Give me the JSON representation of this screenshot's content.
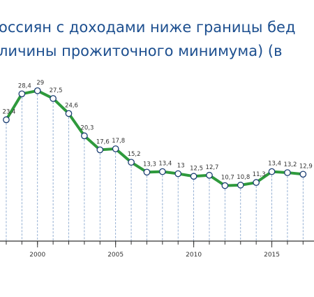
{
  "chart_data": {
    "type": "line",
    "title_lines": [
      "оссиян с доходами ниже границы бед",
      "личины прожиточного минимума) (в"
    ],
    "x": [
      1998,
      1999,
      2000,
      2001,
      2002,
      2003,
      2004,
      2005,
      2006,
      2007,
      2008,
      2009,
      2010,
      2011,
      2012,
      2013,
      2014,
      2015,
      2016,
      2017
    ],
    "series": [
      {
        "name": "poverty",
        "color": "#2e9a3c",
        "values": [
          23.4,
          28.4,
          29,
          27.5,
          24.6,
          20.3,
          17.6,
          17.8,
          15.2,
          13.3,
          13.4,
          13,
          12.5,
          12.7,
          10.7,
          10.8,
          11.3,
          13.4,
          13.2,
          12.9
        ],
        "value_labels": [
          "23,4",
          "28,4",
          "29",
          "27,5",
          "24,6",
          "20,3",
          "17,6",
          "17,8",
          "15,2",
          "13,3",
          "13,4",
          "13",
          "12,5",
          "12,7",
          "10,7",
          "10,8",
          "11,3",
          "13,4",
          "13,2",
          "12,9"
        ]
      }
    ],
    "xlim": [
      1997.6,
      2017.7
    ],
    "xticks": [
      2000,
      2005,
      2010,
      2015
    ],
    "ylim": [
      0,
      46.5
    ]
  }
}
